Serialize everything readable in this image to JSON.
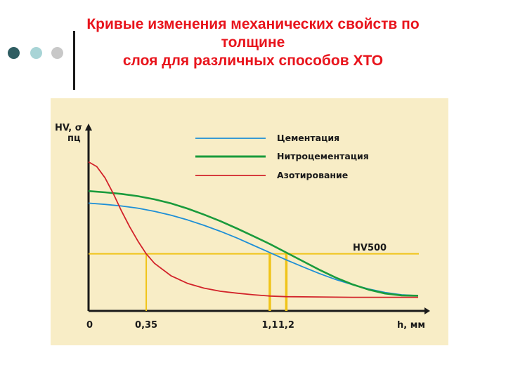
{
  "slide": {
    "title_line1": "Кривые изменения механических свойств по",
    "title_line2": "толщине",
    "title_line3": "слоя для различных способов ХТО",
    "dot_colors": [
      "#2f5d62",
      "#a8d4d6",
      "#c8c8c8"
    ]
  },
  "chart_data": {
    "type": "line",
    "ylabel": "HV, σ",
    "ylabel_sub": "пц",
    "xlabel": "h, мм",
    "x_ticks": [
      "0",
      "0,35",
      "1,1",
      "1,2"
    ],
    "x_tick_values": [
      0,
      0.35,
      1.1,
      1.2
    ],
    "xlim": [
      0,
      2.0
    ],
    "ylim": [
      0,
      560
    ],
    "threshold": {
      "label": "HV500",
      "value": 180,
      "color": "#f0c419"
    },
    "marked_depths": [
      0.35,
      1.1,
      1.2
    ],
    "series": [
      {
        "name": "Цементация",
        "color": "#1e8fd6",
        "x": [
          0,
          0.1,
          0.2,
          0.3,
          0.4,
          0.5,
          0.6,
          0.7,
          0.8,
          0.9,
          1.0,
          1.1,
          1.2,
          1.3,
          1.4,
          1.5,
          1.6,
          1.7,
          1.8,
          1.9,
          2.0
        ],
        "y": [
          340,
          336,
          331,
          324,
          314,
          302,
          287,
          270,
          251,
          230,
          207,
          184,
          161,
          139,
          118,
          99,
          83,
          69,
          58,
          51,
          48
        ]
      },
      {
        "name": "Нитроцементация",
        "color": "#1a9b3c",
        "x": [
          0,
          0.1,
          0.2,
          0.3,
          0.4,
          0.5,
          0.6,
          0.7,
          0.8,
          0.9,
          1.0,
          1.1,
          1.2,
          1.3,
          1.4,
          1.5,
          1.6,
          1.7,
          1.8,
          1.9,
          2.0
        ],
        "y": [
          378,
          374,
          369,
          362,
          352,
          339,
          323,
          304,
          283,
          260,
          236,
          211,
          184,
          157,
          130,
          105,
          84,
          67,
          55,
          49,
          48
        ]
      },
      {
        "name": "Азотирование",
        "color": "#d2232a",
        "x": [
          0,
          0.05,
          0.1,
          0.15,
          0.2,
          0.25,
          0.3,
          0.35,
          0.4,
          0.5,
          0.6,
          0.7,
          0.8,
          0.9,
          1.0,
          1.1,
          1.2,
          1.4,
          1.6,
          1.8,
          2.0
        ],
        "y": [
          470,
          455,
          420,
          370,
          315,
          265,
          220,
          180,
          150,
          111,
          87,
          72,
          62,
          56,
          51,
          47,
          45,
          44,
          43,
          43,
          43
        ]
      }
    ],
    "grid": false,
    "legend": "top-right"
  }
}
